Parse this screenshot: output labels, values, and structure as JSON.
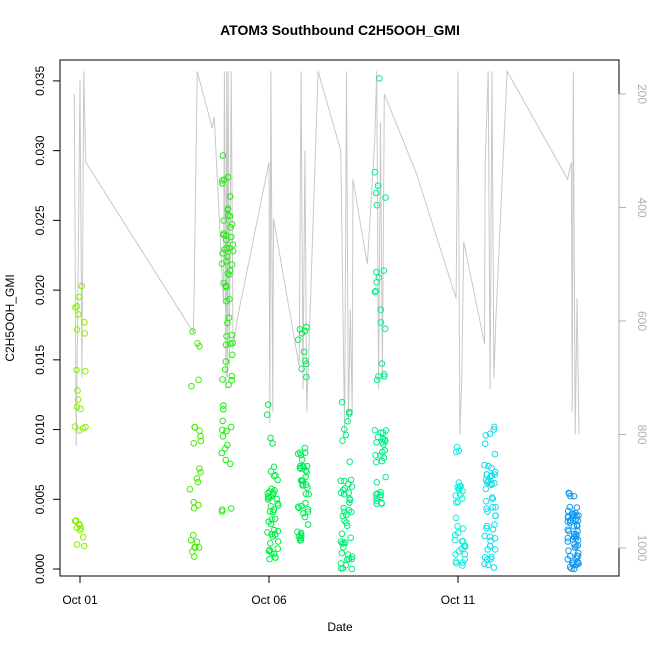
{
  "chart_data": {
    "type": "scatter",
    "title": "ATOM3 Southbound C2H5OOH_GMI",
    "xlabel": "Date",
    "ylabel": "C2H5OOH_GMI",
    "x_ticks": [
      {
        "day": 1,
        "label": "Oct 01"
      },
      {
        "day": 6,
        "label": "Oct 06"
      },
      {
        "day": 11,
        "label": "Oct 11"
      }
    ],
    "x_range_days": [
      0.0,
      15.0
    ],
    "ylim": [
      -0.0005,
      0.0365
    ],
    "y_ticks": [
      0.0,
      0.005,
      0.01,
      0.015,
      0.02,
      0.025,
      0.03,
      0.035
    ],
    "y_tick_labels": [
      "0.000",
      "0.005",
      "0.010",
      "0.015",
      "0.020",
      "0.025",
      "0.030",
      "0.035"
    ],
    "y2_reversed": true,
    "y2_range": [
      1050,
      140
    ],
    "y2_ticks": [
      200,
      400,
      600,
      800,
      1000
    ],
    "y2_tick_labels": [
      "200",
      "400",
      "600",
      "800",
      "1000"
    ],
    "pressure_line_color": "#c8c8c8",
    "series": [
      {
        "day": 1.0,
        "color": "#88ee00",
        "groups": [
          [
            0.0014,
            0.0045,
            10
          ],
          [
            0.0093,
            0.0145,
            10
          ],
          [
            0.0165,
            0.0215,
            8
          ]
        ]
      },
      {
        "day": 4.05,
        "color": "#44ee00",
        "groups": [
          [
            0.0008,
            0.0025,
            8
          ],
          [
            0.0035,
            0.0075,
            8
          ],
          [
            0.009,
            0.011,
            6
          ],
          [
            0.013,
            0.0175,
            5
          ]
        ]
      },
      {
        "day": 4.9,
        "color": "#22ee11",
        "groups": [
          [
            0.004,
            0.0055,
            3
          ],
          [
            0.0075,
            0.0125,
            12
          ],
          [
            0.013,
            0.02,
            16
          ],
          [
            0.02,
            0.026,
            28
          ],
          [
            0.0265,
            0.03,
            6
          ]
        ]
      },
      {
        "day": 6.1,
        "color": "#00ee44",
        "groups": [
          [
            0.0005,
            0.003,
            16
          ],
          [
            0.003,
            0.0075,
            26
          ],
          [
            0.009,
            0.0135,
            4
          ]
        ]
      },
      {
        "day": 6.9,
        "color": "#00ee55",
        "groups": [
          [
            0.002,
            0.006,
            20
          ],
          [
            0.006,
            0.009,
            22
          ],
          [
            0.013,
            0.0175,
            10
          ]
        ]
      },
      {
        "day": 8.05,
        "color": "#00ee77",
        "groups": [
          [
            0.0,
            0.003,
            18
          ],
          [
            0.003,
            0.0065,
            22
          ],
          [
            0.0075,
            0.012,
            8
          ]
        ]
      },
      {
        "day": 8.95,
        "color": "#00ee88",
        "groups": [
          [
            0.0045,
            0.007,
            12
          ],
          [
            0.0075,
            0.01,
            18
          ],
          [
            0.0125,
            0.0235,
            14
          ],
          [
            0.0255,
            0.0305,
            5
          ],
          [
            0.035,
            0.0355,
            1
          ]
        ]
      },
      {
        "day": 11.05,
        "color": "#11eedd",
        "groups": [
          [
            0.0,
            0.0025,
            16
          ],
          [
            0.0025,
            0.0065,
            16
          ],
          [
            0.0075,
            0.0095,
            3
          ]
        ]
      },
      {
        "day": 11.85,
        "color": "#11ddee",
        "groups": [
          [
            0.0,
            0.003,
            16
          ],
          [
            0.003,
            0.006,
            12
          ],
          [
            0.006,
            0.0075,
            16
          ],
          [
            0.008,
            0.0103,
            6
          ]
        ]
      },
      {
        "day": 14.05,
        "color": "#1199ee",
        "groups": [
          [
            0.0,
            0.002,
            22
          ],
          [
            0.002,
            0.004,
            30
          ],
          [
            0.004,
            0.0055,
            8
          ]
        ]
      }
    ],
    "pressure_path": [
      [
        0.85,
        200
      ],
      [
        0.9,
        820
      ],
      [
        0.95,
        520
      ],
      [
        1.0,
        175
      ],
      [
        1.05,
        700
      ],
      [
        1.1,
        160
      ],
      [
        1.15,
        320
      ],
      [
        4.0,
        620
      ],
      [
        4.02,
        540
      ],
      [
        4.1,
        160
      ],
      [
        4.5,
        260
      ],
      [
        4.55,
        240
      ],
      [
        4.8,
        570
      ],
      [
        4.82,
        160
      ],
      [
        4.86,
        720
      ],
      [
        4.88,
        160
      ],
      [
        4.9,
        700
      ],
      [
        4.92,
        160
      ],
      [
        4.95,
        680
      ],
      [
        5.0,
        160
      ],
      [
        5.05,
        650
      ],
      [
        5.15,
        600
      ],
      [
        6.0,
        320
      ],
      [
        6.02,
        780
      ],
      [
        6.05,
        160
      ],
      [
        6.1,
        760
      ],
      [
        6.12,
        420
      ],
      [
        6.8,
        680
      ],
      [
        6.85,
        160
      ],
      [
        6.9,
        720
      ],
      [
        6.95,
        300
      ],
      [
        7.0,
        760
      ],
      [
        7.3,
        160
      ],
      [
        7.9,
        300
      ],
      [
        8.0,
        800
      ],
      [
        8.05,
        160
      ],
      [
        8.1,
        780
      ],
      [
        8.15,
        580
      ],
      [
        8.2,
        760
      ],
      [
        8.22,
        350
      ],
      [
        8.6,
        500
      ],
      [
        8.8,
        280
      ],
      [
        8.85,
        160
      ],
      [
        8.9,
        720
      ],
      [
        8.95,
        250
      ],
      [
        9.0,
        700
      ],
      [
        9.05,
        200
      ],
      [
        9.9,
        340
      ],
      [
        10.95,
        560
      ],
      [
        11.0,
        160
      ],
      [
        11.05,
        800
      ],
      [
        11.1,
        700
      ],
      [
        11.15,
        460
      ],
      [
        11.7,
        640
      ],
      [
        11.72,
        320
      ],
      [
        11.8,
        160
      ],
      [
        11.85,
        720
      ],
      [
        11.9,
        160
      ],
      [
        11.95,
        700
      ],
      [
        12.0,
        600
      ],
      [
        12.3,
        160
      ],
      [
        13.9,
        350
      ],
      [
        14.0,
        320
      ],
      [
        14.02,
        760
      ],
      [
        14.05,
        160
      ],
      [
        14.1,
        800
      ],
      [
        14.15,
        560
      ],
      [
        14.2,
        800
      ]
    ]
  }
}
